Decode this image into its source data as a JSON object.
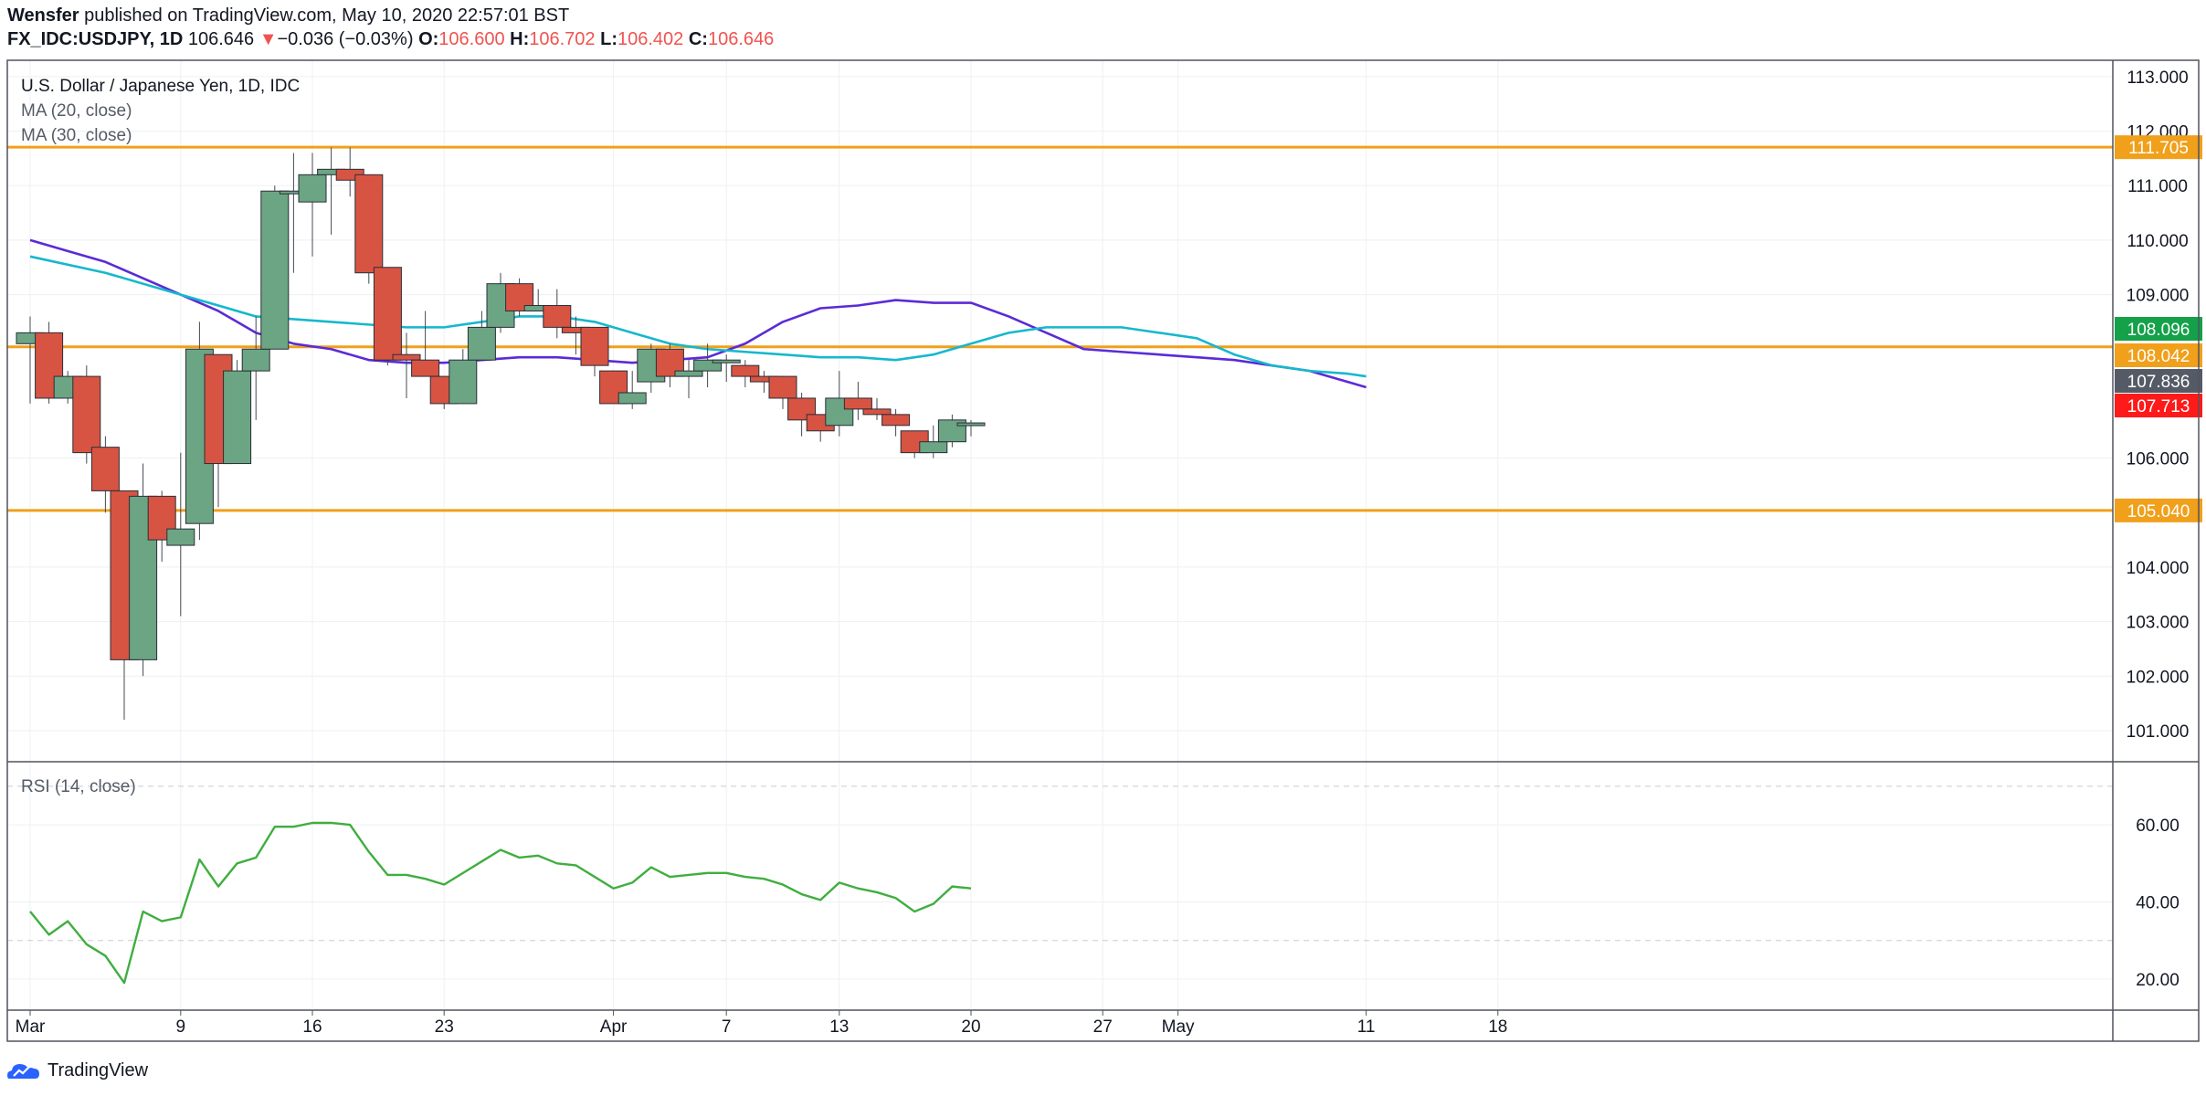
{
  "header": {
    "publisher": "Wensfer",
    "published_text": "published on TradingView.com, May 10, 2020 22:57:01 BST",
    "symbol": "FX_IDC:USDJPY, 1D",
    "last": "106.646",
    "change_arrow": "▼",
    "change": "−0.036 (−0.03%)",
    "o_label": "O:",
    "o_value": "106.600",
    "h_label": "H:",
    "h_value": "106.702",
    "l_label": "L:",
    "l_value": "106.402",
    "c_label": "C:",
    "c_value": "106.646"
  },
  "footer": {
    "brand": "TradingView"
  },
  "colors": {
    "up": "#6ba583",
    "down": "#d75442",
    "ma20": "#5b2bd6",
    "ma30": "#16b8cc",
    "rsi": "#3fae3f",
    "level": "#f0a01b",
    "grid": "#eef0f3",
    "axis_text": "#131722"
  },
  "chart_data": [
    {
      "type": "candlestick",
      "title": "U.S. Dollar / Japanese Yen, 1D, IDC",
      "indicators": [
        "MA (20, close)",
        "MA (30, close)"
      ],
      "ylim": [
        100.3,
        113.0
      ],
      "y_ticks": [
        101,
        102,
        103,
        104,
        106,
        109,
        110,
        111,
        112,
        113
      ],
      "y_tick_labels": [
        "101.000",
        "102.000",
        "103.000",
        "104.000",
        "106.000",
        "109.000",
        "110.000",
        "111.000",
        "112.000",
        "113.000"
      ],
      "x_ticks": [
        {
          "label": "Mar",
          "day": 0
        },
        {
          "label": "9",
          "day": 8
        },
        {
          "label": "16",
          "day": 15
        },
        {
          "label": "23",
          "day": 22
        },
        {
          "label": "Apr",
          "day": 31
        },
        {
          "label": "7",
          "day": 37
        },
        {
          "label": "13",
          "day": 43
        },
        {
          "label": "20",
          "day": 50
        },
        {
          "label": "27",
          "day": 57
        },
        {
          "label": "May",
          "day": 61
        },
        {
          "label": "11",
          "day": 71
        },
        {
          "label": "18",
          "day": 78
        }
      ],
      "horizontal_levels": [
        111.705,
        108.042,
        105.04
      ],
      "price_labels": [
        {
          "text": "111.705",
          "value": 111.705,
          "color": "#f0a01b"
        },
        {
          "text": "108.096",
          "value": 108.096,
          "color": "#14a14a"
        },
        {
          "text": "108.042",
          "value": 108.042,
          "color": "#f0a01b"
        },
        {
          "text": "107.836",
          "value": 107.836,
          "color": "#555b66"
        },
        {
          "text": "107.713",
          "value": 107.713,
          "color": "#ff1a1a"
        },
        {
          "text": "105.040",
          "value": 105.04,
          "color": "#f0a01b"
        }
      ],
      "candles": [
        {
          "day": 0,
          "o": 108.1,
          "h": 108.6,
          "l": 107.0,
          "c": 108.3
        },
        {
          "day": 1,
          "o": 108.3,
          "h": 108.5,
          "l": 107.0,
          "c": 107.1
        },
        {
          "day": 2,
          "o": 107.1,
          "h": 107.6,
          "l": 107.0,
          "c": 107.5
        },
        {
          "day": 3,
          "o": 107.5,
          "h": 107.7,
          "l": 105.9,
          "c": 106.1
        },
        {
          "day": 4,
          "o": 106.2,
          "h": 106.4,
          "l": 105.0,
          "c": 105.4
        },
        {
          "day": 5,
          "o": 105.4,
          "h": 105.4,
          "l": 101.2,
          "c": 102.3
        },
        {
          "day": 6,
          "o": 102.3,
          "h": 105.9,
          "l": 102.0,
          "c": 105.3
        },
        {
          "day": 7,
          "o": 105.3,
          "h": 105.4,
          "l": 104.1,
          "c": 104.5
        },
        {
          "day": 8,
          "o": 104.4,
          "h": 106.1,
          "l": 103.1,
          "c": 104.7
        },
        {
          "day": 9,
          "o": 104.8,
          "h": 108.5,
          "l": 104.5,
          "c": 108.0
        },
        {
          "day": 10,
          "o": 107.9,
          "h": 107.9,
          "l": 105.1,
          "c": 105.9
        },
        {
          "day": 11,
          "o": 105.9,
          "h": 107.8,
          "l": 105.9,
          "c": 107.6
        },
        {
          "day": 12,
          "o": 107.6,
          "h": 108.6,
          "l": 106.7,
          "c": 108.0
        },
        {
          "day": 13,
          "o": 108.0,
          "h": 111.0,
          "l": 108.0,
          "c": 110.9
        },
        {
          "day": 14,
          "o": 110.9,
          "h": 111.6,
          "l": 109.4,
          "c": 110.9
        },
        {
          "day": 15,
          "o": 110.7,
          "h": 111.6,
          "l": 109.7,
          "c": 111.2
        },
        {
          "day": 16,
          "o": 111.2,
          "h": 111.7,
          "l": 110.1,
          "c": 111.3
        },
        {
          "day": 17,
          "o": 111.3,
          "h": 111.7,
          "l": 110.8,
          "c": 111.1
        },
        {
          "day": 18,
          "o": 111.2,
          "h": 111.2,
          "l": 109.2,
          "c": 109.4
        },
        {
          "day": 19,
          "o": 109.5,
          "h": 109.5,
          "l": 107.7,
          "c": 107.8
        },
        {
          "day": 20,
          "o": 107.9,
          "h": 108.3,
          "l": 107.1,
          "c": 107.8
        },
        {
          "day": 21,
          "o": 107.8,
          "h": 108.7,
          "l": 107.5,
          "c": 107.5
        },
        {
          "day": 22,
          "o": 107.5,
          "h": 107.5,
          "l": 106.9,
          "c": 107.0
        },
        {
          "day": 23,
          "o": 107.0,
          "h": 108.0,
          "l": 107.0,
          "c": 107.8
        },
        {
          "day": 24,
          "o": 107.8,
          "h": 108.7,
          "l": 107.8,
          "c": 108.4
        },
        {
          "day": 25,
          "o": 108.4,
          "h": 109.4,
          "l": 108.3,
          "c": 109.2
        },
        {
          "day": 26,
          "o": 109.2,
          "h": 109.3,
          "l": 108.6,
          "c": 108.7
        },
        {
          "day": 27,
          "o": 108.7,
          "h": 109.1,
          "l": 108.7,
          "c": 108.8
        },
        {
          "day": 28,
          "o": 108.8,
          "h": 109.1,
          "l": 108.2,
          "c": 108.4
        },
        {
          "day": 29,
          "o": 108.4,
          "h": 108.6,
          "l": 107.9,
          "c": 108.3
        },
        {
          "day": 30,
          "o": 108.4,
          "h": 108.4,
          "l": 107.5,
          "c": 107.7
        },
        {
          "day": 31,
          "o": 107.6,
          "h": 107.6,
          "l": 107.0,
          "c": 107.0
        },
        {
          "day": 32,
          "o": 107.0,
          "h": 107.6,
          "l": 106.9,
          "c": 107.2
        },
        {
          "day": 33,
          "o": 107.4,
          "h": 108.1,
          "l": 107.2,
          "c": 108.0
        },
        {
          "day": 34,
          "o": 108.0,
          "h": 108.1,
          "l": 107.3,
          "c": 107.5
        },
        {
          "day": 35,
          "o": 107.5,
          "h": 107.8,
          "l": 107.1,
          "c": 107.6
        },
        {
          "day": 36,
          "o": 107.6,
          "h": 108.1,
          "l": 107.3,
          "c": 107.8
        },
        {
          "day": 37,
          "o": 107.8,
          "h": 107.9,
          "l": 107.4,
          "c": 107.8
        },
        {
          "day": 38,
          "o": 107.7,
          "h": 107.8,
          "l": 107.3,
          "c": 107.5
        },
        {
          "day": 39,
          "o": 107.5,
          "h": 107.6,
          "l": 107.2,
          "c": 107.4
        },
        {
          "day": 40,
          "o": 107.5,
          "h": 107.5,
          "l": 106.9,
          "c": 107.1
        },
        {
          "day": 41,
          "o": 107.1,
          "h": 107.2,
          "l": 106.4,
          "c": 106.7
        },
        {
          "day": 42,
          "o": 106.8,
          "h": 106.8,
          "l": 106.3,
          "c": 106.5
        },
        {
          "day": 43,
          "o": 106.6,
          "h": 107.6,
          "l": 106.4,
          "c": 107.1
        },
        {
          "day": 44,
          "o": 107.1,
          "h": 107.4,
          "l": 106.7,
          "c": 106.9
        },
        {
          "day": 45,
          "o": 106.9,
          "h": 107.1,
          "l": 106.7,
          "c": 106.8
        },
        {
          "day": 46,
          "o": 106.8,
          "h": 106.9,
          "l": 106.4,
          "c": 106.6
        },
        {
          "day": 47,
          "o": 106.5,
          "h": 106.5,
          "l": 106.0,
          "c": 106.1
        },
        {
          "day": 48,
          "o": 106.1,
          "h": 106.6,
          "l": 106.0,
          "c": 106.3
        },
        {
          "day": 49,
          "o": 106.3,
          "h": 106.8,
          "l": 106.2,
          "c": 106.7
        },
        {
          "day": 50,
          "o": 106.6,
          "h": 106.7,
          "l": 106.4,
          "c": 106.646
        }
      ],
      "series": [
        {
          "name": "MA (20, close)",
          "points": [
            [
              0,
              110.0
            ],
            [
              2,
              109.8
            ],
            [
              4,
              109.6
            ],
            [
              6,
              109.3
            ],
            [
              8,
              109.0
            ],
            [
              10,
              108.7
            ],
            [
              12,
              108.3
            ],
            [
              14,
              108.1
            ],
            [
              16,
              108.0
            ],
            [
              18,
              107.8
            ],
            [
              20,
              107.75
            ],
            [
              22,
              107.75
            ],
            [
              24,
              107.8
            ],
            [
              26,
              107.85
            ],
            [
              28,
              107.85
            ],
            [
              30,
              107.8
            ],
            [
              32,
              107.75
            ],
            [
              34,
              107.8
            ],
            [
              36,
              107.85
            ],
            [
              38,
              108.1
            ],
            [
              40,
              108.5
            ],
            [
              42,
              108.75
            ],
            [
              44,
              108.8
            ],
            [
              46,
              108.9
            ],
            [
              48,
              108.85
            ],
            [
              50,
              108.85
            ],
            [
              52,
              108.6
            ],
            [
              54,
              108.3
            ],
            [
              56,
              108.0
            ],
            [
              58,
              107.95
            ],
            [
              60,
              107.9
            ],
            [
              62,
              107.85
            ],
            [
              64,
              107.8
            ],
            [
              66,
              107.7
            ],
            [
              68,
              107.6
            ],
            [
              70,
              107.4
            ],
            [
              71,
              107.3
            ]
          ]
        },
        {
          "name": "MA (30, close)",
          "points": [
            [
              0,
              109.7
            ],
            [
              4,
              109.4
            ],
            [
              8,
              109.0
            ],
            [
              12,
              108.6
            ],
            [
              16,
              108.5
            ],
            [
              20,
              108.4
            ],
            [
              22,
              108.4
            ],
            [
              24,
              108.5
            ],
            [
              26,
              108.6
            ],
            [
              28,
              108.6
            ],
            [
              30,
              108.5
            ],
            [
              32,
              108.3
            ],
            [
              34,
              108.1
            ],
            [
              36,
              108.0
            ],
            [
              38,
              107.95
            ],
            [
              40,
              107.9
            ],
            [
              42,
              107.85
            ],
            [
              44,
              107.85
            ],
            [
              46,
              107.8
            ],
            [
              48,
              107.9
            ],
            [
              50,
              108.1
            ],
            [
              52,
              108.3
            ],
            [
              54,
              108.4
            ],
            [
              56,
              108.4
            ],
            [
              58,
              108.4
            ],
            [
              60,
              108.3
            ],
            [
              62,
              108.2
            ],
            [
              64,
              107.9
            ],
            [
              66,
              107.7
            ],
            [
              68,
              107.6
            ],
            [
              70,
              107.55
            ],
            [
              71,
              107.5
            ]
          ]
        }
      ]
    },
    {
      "type": "line",
      "title": "RSI (14, close)",
      "ylim": [
        15,
        72
      ],
      "y_ticks": [
        20,
        40,
        60
      ],
      "y_tick_labels": [
        "20.00",
        "40.00",
        "60.00"
      ],
      "bands": [
        30,
        70
      ],
      "series": [
        {
          "name": "RSI (14, close)",
          "points": [
            [
              0,
              37.5
            ],
            [
              1,
              31.5
            ],
            [
              2,
              35.0
            ],
            [
              3,
              29.0
            ],
            [
              4,
              26.0
            ],
            [
              5,
              19.0
            ],
            [
              6,
              37.5
            ],
            [
              7,
              35.0
            ],
            [
              8,
              36.0
            ],
            [
              9,
              51.0
            ],
            [
              10,
              44.0
            ],
            [
              11,
              50.0
            ],
            [
              12,
              51.5
            ],
            [
              13,
              59.5
            ],
            [
              14,
              59.5
            ],
            [
              15,
              60.5
            ],
            [
              16,
              60.5
            ],
            [
              17,
              60.0
            ],
            [
              18,
              53.0
            ],
            [
              19,
              47.0
            ],
            [
              20,
              47.0
            ],
            [
              21,
              46.0
            ],
            [
              22,
              44.5
            ],
            [
              23,
              47.5
            ],
            [
              24,
              50.5
            ],
            [
              25,
              53.5
            ],
            [
              26,
              51.5
            ],
            [
              27,
              52.0
            ],
            [
              28,
              50.0
            ],
            [
              29,
              49.5
            ],
            [
              30,
              46.5
            ],
            [
              31,
              43.5
            ],
            [
              32,
              45.0
            ],
            [
              33,
              49.0
            ],
            [
              34,
              46.5
            ],
            [
              35,
              47.0
            ],
            [
              36,
              47.5
            ],
            [
              37,
              47.5
            ],
            [
              38,
              46.5
            ],
            [
              39,
              46.0
            ],
            [
              40,
              44.5
            ],
            [
              41,
              42.0
            ],
            [
              42,
              40.5
            ],
            [
              43,
              45.0
            ],
            [
              44,
              43.5
            ],
            [
              45,
              42.5
            ],
            [
              46,
              41.0
            ],
            [
              47,
              37.5
            ],
            [
              48,
              39.5
            ],
            [
              49,
              44.0
            ],
            [
              50,
              43.5
            ]
          ]
        }
      ]
    }
  ]
}
